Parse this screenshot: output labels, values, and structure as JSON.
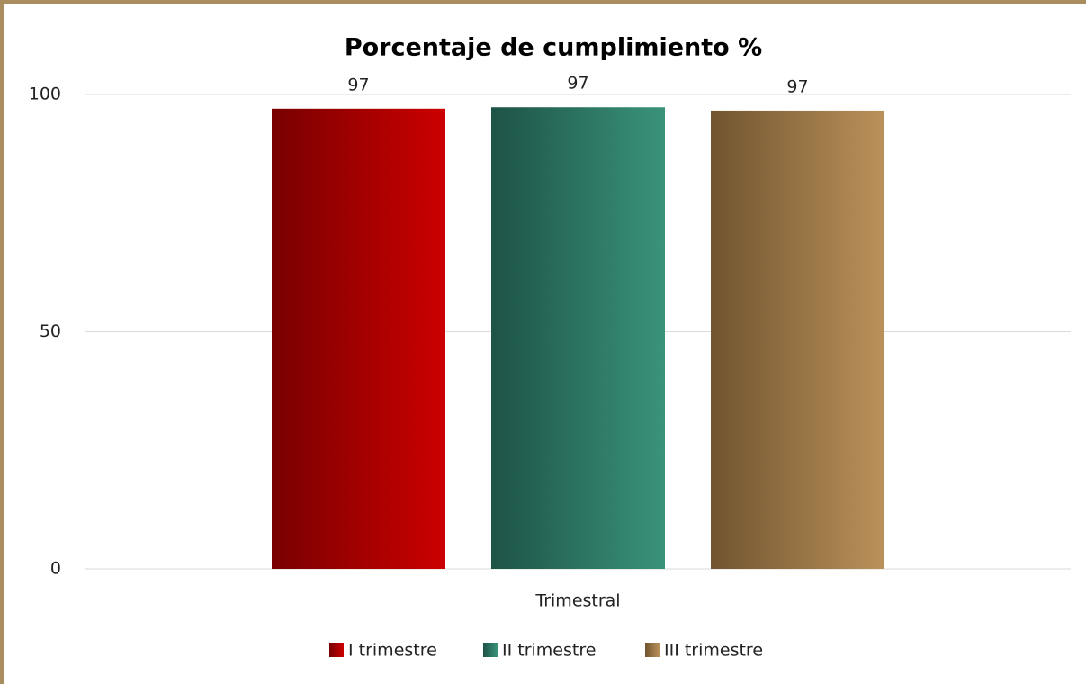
{
  "chart_data": {
    "type": "bar",
    "title": "Porcentaje de cumplimiento %",
    "categories": [
      "Trimestral"
    ],
    "series": [
      {
        "name": "I trimestre",
        "color": [
          "#780000",
          "#cc0000"
        ],
        "values": [
          97.0
        ],
        "value_labels": [
          "97"
        ]
      },
      {
        "name": "II trimestre",
        "color": [
          "#1d5346",
          "#3a937b"
        ],
        "values": [
          97.3
        ],
        "value_labels": [
          "97"
        ]
      },
      {
        "name": "III trimestre",
        "color": [
          "#70552f",
          "#bb915a"
        ],
        "values": [
          96.6
        ],
        "value_labels": [
          "97"
        ]
      }
    ],
    "ylim": [
      0,
      100
    ],
    "yticks": [
      0,
      50,
      100
    ],
    "grid": true,
    "legend": "bottom"
  }
}
